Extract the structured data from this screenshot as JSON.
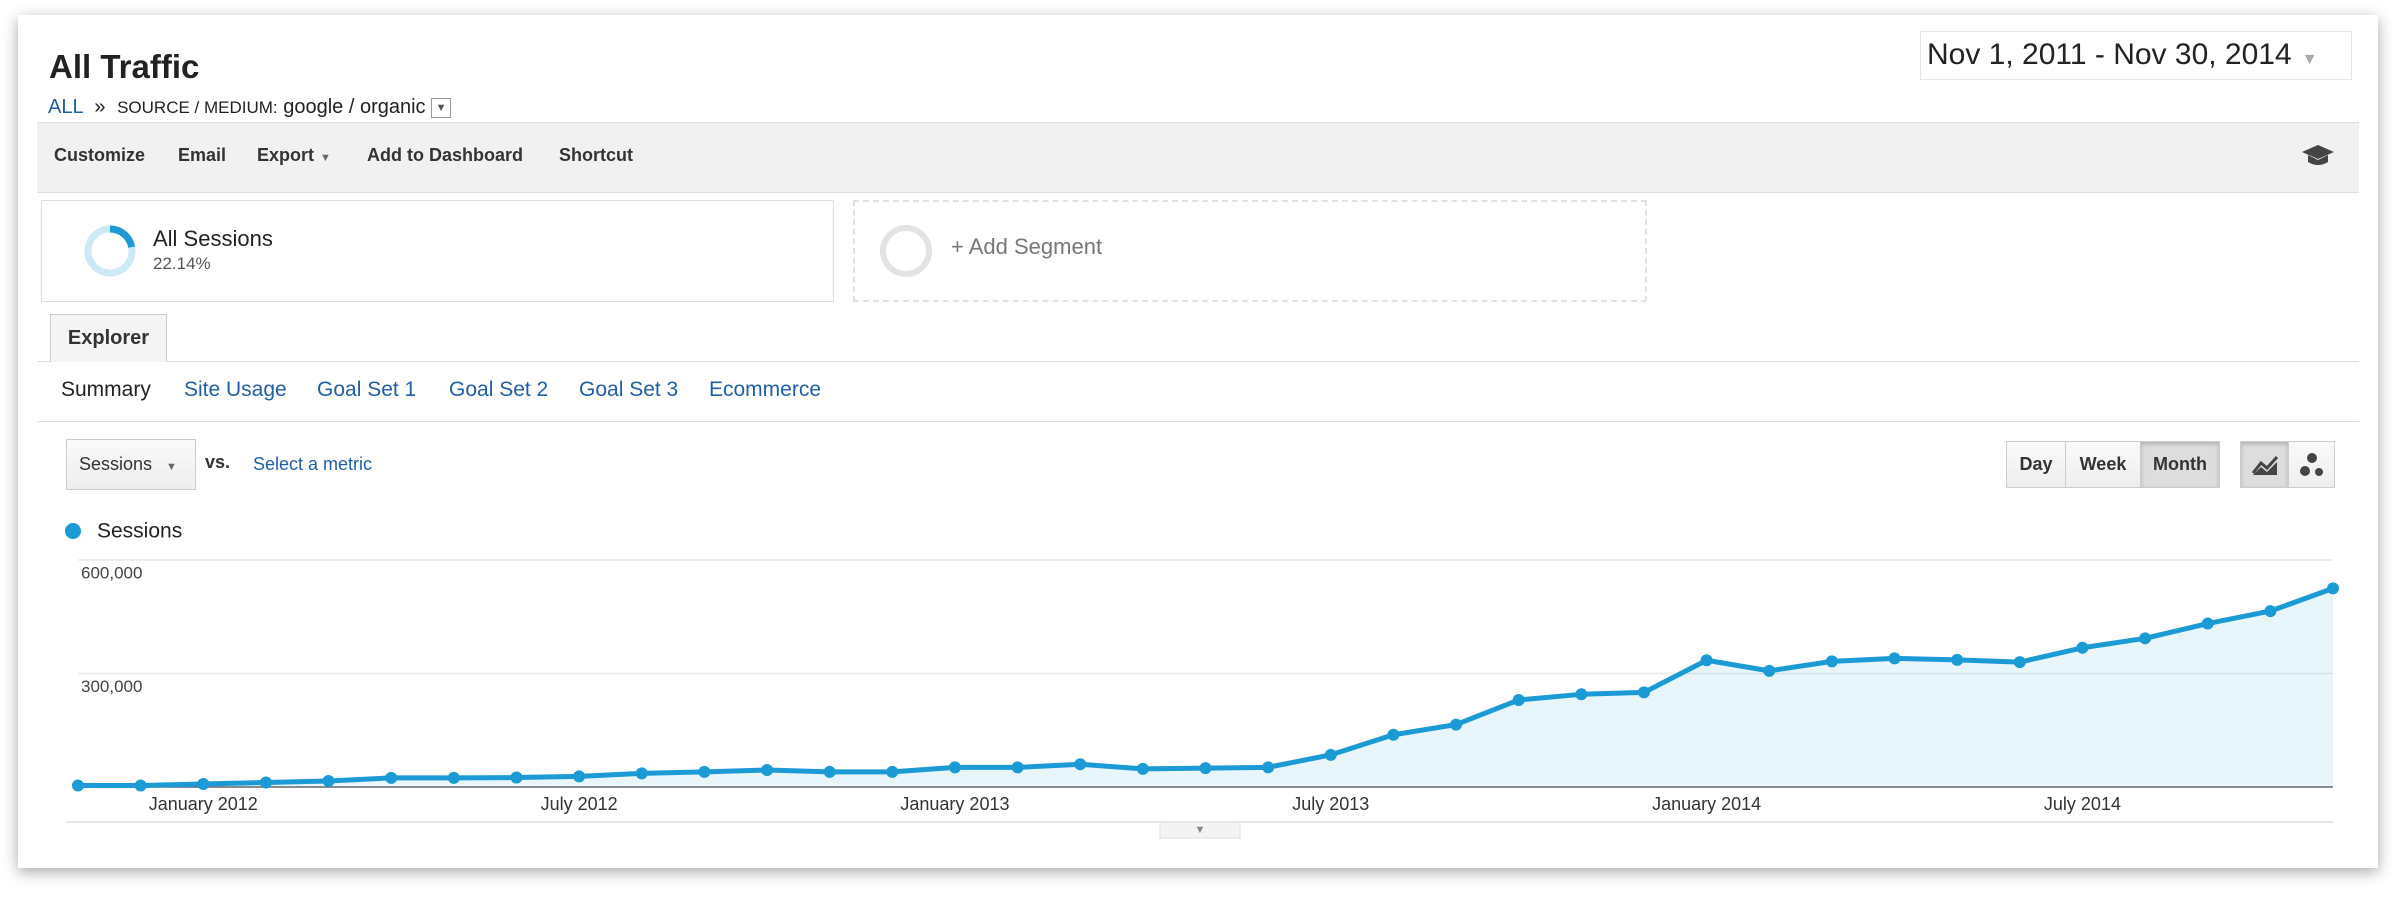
{
  "header": {
    "title": "All Traffic",
    "breadcrumb": {
      "root": "ALL",
      "separator": "»",
      "dimension": "SOURCE / MEDIUM:",
      "value": "google / organic"
    },
    "date_range": "Nov 1, 2011 - Nov 30, 2014"
  },
  "toolbar": [
    "Customize",
    "Email",
    "Export",
    "Add to Dashboard",
    "Shortcut"
  ],
  "segments": [
    {
      "name": "All Sessions",
      "value": 22.14,
      "value_label": "22.14%"
    },
    {
      "name": "+ Add Segment"
    }
  ],
  "tab": "Explorer",
  "subtabs": [
    "Summary",
    "Site Usage",
    "Goal Set 1",
    "Goal Set 2",
    "Goal Set 3",
    "Ecommerce"
  ],
  "controls": {
    "metric": "Sessions",
    "vs": "vs.",
    "select": "Select a metric",
    "granularity": [
      "Day",
      "Week",
      "Month"
    ]
  },
  "chart_data": {
    "type": "line",
    "categories": [
      null,
      null,
      "January 2012",
      null,
      null,
      null,
      null,
      null,
      "July 2012",
      null,
      null,
      null,
      null,
      null,
      "January 2013",
      null,
      null,
      null,
      null,
      null,
      "July 2013",
      null,
      null,
      null,
      null,
      null,
      "January 2014",
      null,
      null,
      null,
      null,
      null,
      "July 2014",
      null,
      null,
      null,
      null
    ],
    "series": [
      {
        "name": "Sessions",
        "color": "#1b9ad6",
        "values": [
          4000,
          4000,
          8000,
          12000,
          16000,
          24000,
          24000,
          25000,
          28000,
          36000,
          40000,
          45000,
          40000,
          40000,
          52000,
          52000,
          60000,
          48000,
          50000,
          52000,
          85000,
          138000,
          165000,
          230000,
          245000,
          250000,
          335000,
          307000,
          332000,
          340000,
          336000,
          330000,
          368000,
          393000,
          432000,
          465000,
          525000
        ]
      }
    ],
    "ylim": [
      0,
      600000
    ],
    "yticks": [
      {
        "value": 300000,
        "label": "300,000"
      },
      {
        "value": 600000,
        "label": "600,000"
      }
    ],
    "grid": true,
    "area": true
  }
}
